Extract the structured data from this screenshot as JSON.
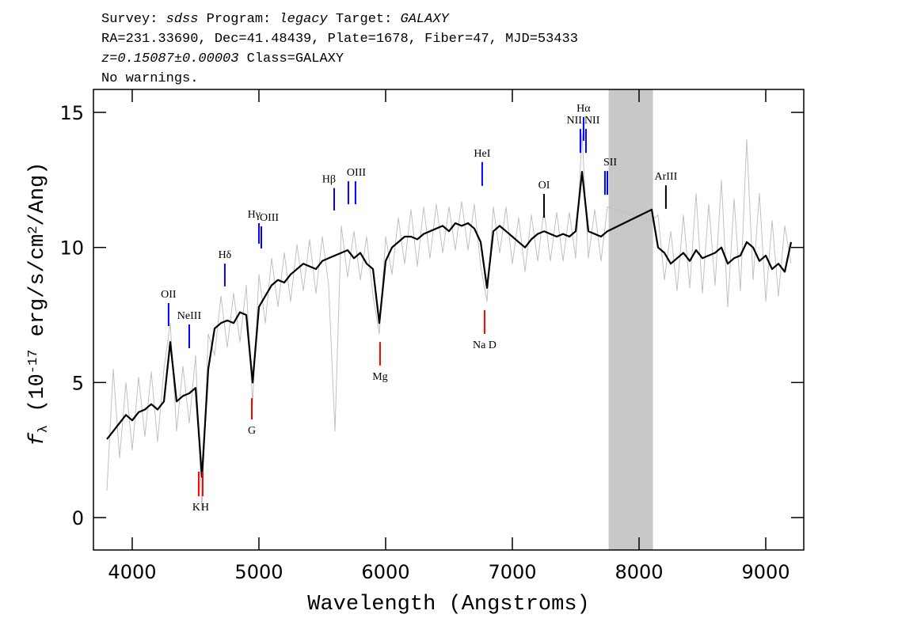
{
  "chart_data": {
    "type": "line",
    "header": [
      [
        {
          "text": "Survey: "
        },
        {
          "text": "sdss",
          "italic": true
        },
        {
          "text": " Program: "
        },
        {
          "text": "legacy",
          "italic": true
        },
        {
          "text": " Target: "
        },
        {
          "text": "GALAXY",
          "italic": true
        }
      ],
      [
        {
          "text": "RA=231.33690, Dec=41.48439, Plate=1678, Fiber=47, MJD=53433"
        }
      ],
      [
        {
          "text": "z=0.15087±0.00003",
          "italic": true
        },
        {
          "text": " Class=GALAXY"
        }
      ],
      [
        {
          "text": "No warnings."
        }
      ]
    ],
    "xlabel": "Wavelength (Angstroms)",
    "ylabel": [
      {
        "text": "f",
        "italic": true
      },
      {
        "text": "λ",
        "sub": true
      },
      {
        "text": " (10"
      },
      {
        "text": "-17",
        "sup": true
      },
      {
        "text": " erg/s/cm"
      },
      {
        "text": "2",
        "sup": true
      },
      {
        "text": "/Ang)"
      }
    ],
    "xlim": [
      3694,
      9300
    ],
    "ylim": [
      -1.2,
      15.85
    ],
    "xticks": [
      4000,
      5000,
      6000,
      7000,
      8000,
      9000
    ],
    "yticks": [
      0,
      5,
      10,
      15
    ],
    "x": [
      3800,
      3850,
      3900,
      3950,
      4000,
      4050,
      4100,
      4150,
      4200,
      4250,
      4300,
      4350,
      4400,
      4450,
      4500,
      4550,
      4600,
      4650,
      4700,
      4750,
      4800,
      4850,
      4900,
      4950,
      5000,
      5050,
      5100,
      5150,
      5200,
      5250,
      5300,
      5350,
      5400,
      5450,
      5500,
      5550,
      5600,
      5650,
      5700,
      5750,
      5800,
      5850,
      5900,
      5950,
      6000,
      6050,
      6100,
      6150,
      6200,
      6250,
      6300,
      6350,
      6400,
      6450,
      6500,
      6550,
      6600,
      6650,
      6700,
      6750,
      6800,
      6850,
      6900,
      6950,
      7000,
      7050,
      7100,
      7150,
      7200,
      7250,
      7300,
      7350,
      7400,
      7450,
      7500,
      7550,
      7600,
      7650,
      7700,
      7750,
      8100,
      8150,
      8200,
      8250,
      8300,
      8350,
      8400,
      8450,
      8500,
      8550,
      8600,
      8650,
      8700,
      8750,
      8800,
      8850,
      8900,
      8950,
      9000,
      9050,
      9100,
      9150,
      9200
    ],
    "series": [
      {
        "color": "#c0c0c0",
        "values": [
          1.0,
          5.5,
          2.2,
          5.0,
          2.5,
          5.2,
          3.0,
          5.4,
          2.8,
          5.5,
          7.2,
          3.2,
          5.6,
          3.5,
          6.0,
          0.3,
          6.8,
          6.0,
          8.2,
          6.3,
          8.3,
          6.5,
          8.6,
          4.2,
          9.0,
          7.2,
          9.6,
          7.8,
          9.8,
          8.0,
          10.1,
          8.4,
          10.3,
          8.3,
          10.4,
          8.6,
          3.2,
          10.8,
          8.9,
          10.6,
          8.8,
          10.4,
          8.2,
          6.8,
          10.4,
          9.0,
          11.1,
          9.4,
          11.4,
          9.3,
          11.5,
          9.6,
          11.6,
          9.8,
          11.5,
          9.9,
          11.7,
          9.9,
          11.6,
          9.3,
          8.0,
          11.5,
          9.8,
          11.5,
          9.4,
          11.1,
          9.1,
          11.2,
          9.5,
          11.4,
          9.5,
          11.3,
          9.5,
          11.3,
          9.6,
          14.2,
          9.6,
          11.4,
          9.5,
          11.5,
          11.0,
          11.2,
          8.8,
          10.6,
          8.4,
          11.2,
          8.5,
          12.0,
          8.3,
          11.6,
          8.6,
          12.5,
          7.8,
          11.8,
          8.4,
          14.0,
          8.8,
          12.0,
          8.0,
          11.0,
          8.2,
          10.8,
          9.4
        ]
      },
      {
        "color": "#000000",
        "values": [
          2.9,
          3.2,
          3.5,
          3.8,
          3.6,
          3.9,
          4.0,
          4.2,
          4.0,
          4.3,
          6.5,
          4.3,
          4.5,
          4.6,
          4.8,
          1.5,
          5.5,
          7.0,
          7.2,
          7.3,
          7.2,
          7.6,
          7.5,
          5.0,
          7.8,
          8.2,
          8.6,
          8.8,
          8.7,
          9.0,
          9.2,
          9.4,
          9.3,
          9.2,
          9.5,
          9.6,
          9.7,
          9.8,
          9.9,
          9.6,
          9.8,
          9.4,
          9.2,
          7.2,
          9.5,
          10.0,
          10.2,
          10.4,
          10.4,
          10.3,
          10.5,
          10.6,
          10.7,
          10.8,
          10.6,
          10.9,
          10.8,
          10.9,
          10.7,
          10.2,
          8.5,
          10.6,
          10.8,
          10.6,
          10.4,
          10.2,
          10.0,
          10.3,
          10.5,
          10.6,
          10.5,
          10.4,
          10.5,
          10.4,
          10.6,
          12.8,
          10.6,
          10.5,
          10.4,
          10.6,
          11.4,
          10.0,
          9.8,
          9.4,
          9.6,
          9.8,
          9.5,
          9.9,
          9.6,
          9.7,
          9.8,
          10.0,
          9.4,
          9.6,
          9.7,
          10.2,
          10.0,
          9.5,
          9.7,
          9.2,
          9.4,
          9.1,
          10.2
        ]
      }
    ],
    "mask": {
      "x": [
        7760,
        8110
      ],
      "color": "#c8c8c8"
    },
    "lines": [
      {
        "label": "OII",
        "wavelength": 4287,
        "top": 7.94,
        "bottom": 7.09,
        "color": "#0000ff",
        "side": "above",
        "align": "center"
      },
      {
        "label": "NeIII",
        "wavelength": 4450,
        "top": 7.15,
        "bottom": 6.27,
        "color": "#0000ff",
        "side": "above",
        "align": "center"
      },
      {
        "label": "Hδ",
        "wavelength": 4731,
        "top": 9.4,
        "bottom": 8.56,
        "color": "#0000ff",
        "side": "above",
        "align": "center"
      },
      {
        "label": "Hγ",
        "wavelength": 5000,
        "top": 10.9,
        "bottom": 10.14,
        "color": "#0000ff",
        "side": "above",
        "align": "right"
      },
      {
        "label": "OIII",
        "wavelength": 5019,
        "top": 10.78,
        "bottom": 9.96,
        "color": "#0000ff",
        "side": "above",
        "align": "left"
      },
      {
        "label": "Hβ",
        "wavelength": 5594,
        "top": 12.2,
        "bottom": 11.37,
        "color": "#0000ff",
        "side": "above",
        "align": "right"
      },
      {
        "label": "OIII",
        "wavelength": 5706,
        "top": 12.45,
        "bottom": 11.6,
        "color": "#0000ff",
        "side": "above",
        "align": "left"
      },
      {
        "wavelength": 5762,
        "top": 12.45,
        "bottom": 11.6,
        "color": "#0000ff"
      },
      {
        "label": "HeI",
        "wavelength": 6762,
        "top": 13.16,
        "bottom": 12.28,
        "color": "#0000ff",
        "side": "above",
        "align": "center"
      },
      {
        "label": "OI",
        "wavelength": 7250,
        "top": 11.98,
        "bottom": 11.1,
        "color": "#000000",
        "side": "above",
        "align": "center"
      },
      {
        "label": "NII",
        "wavelength": 7537,
        "top": 14.39,
        "bottom": 13.5,
        "color": "#0000ff",
        "side": "above",
        "align": "right"
      },
      {
        "label": "Hα",
        "wavelength": 7562,
        "top": 14.83,
        "bottom": 13.95,
        "color": "#0000ff",
        "side": "above",
        "align": "center"
      },
      {
        "label": "NII",
        "wavelength": 7581,
        "top": 14.39,
        "bottom": 13.5,
        "color": "#0000ff",
        "side": "above",
        "align": "left"
      },
      {
        "label": "SII",
        "wavelength": 7731,
        "top": 12.83,
        "bottom": 11.95,
        "color": "#0000ff",
        "side": "above",
        "align": "left"
      },
      {
        "wavelength": 7750,
        "top": 12.83,
        "bottom": 11.95,
        "color": "#0000ff"
      },
      {
        "label": "ArIII",
        "wavelength": 8212,
        "top": 12.3,
        "bottom": 11.43,
        "color": "#000000",
        "side": "above",
        "align": "center"
      },
      {
        "label": "K",
        "wavelength": 4525,
        "top": 1.7,
        "bottom": 0.79,
        "color": "#ff0000",
        "side": "below",
        "align": "right"
      },
      {
        "label": "H",
        "wavelength": 4556,
        "top": 1.7,
        "bottom": 0.79,
        "color": "#ff0000",
        "side": "below",
        "align": "left"
      },
      {
        "label": "G",
        "wavelength": 4944,
        "top": 4.42,
        "bottom": 3.63,
        "color": "#ff0000",
        "side": "below",
        "align": "center"
      },
      {
        "label": "Mg",
        "wavelength": 5956,
        "top": 6.5,
        "bottom": 5.63,
        "color": "#ff0000",
        "side": "below",
        "align": "center"
      },
      {
        "label": "Na D",
        "wavelength": 6781,
        "top": 7.68,
        "bottom": 6.8,
        "color": "#ff0000",
        "side": "below",
        "align": "center"
      }
    ]
  }
}
